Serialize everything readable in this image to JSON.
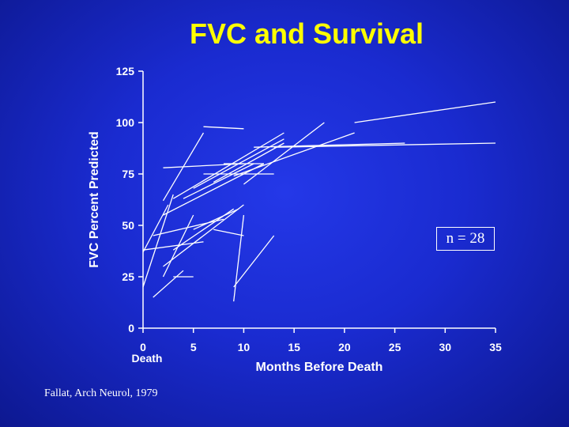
{
  "slide": {
    "title": "FVC and Survival",
    "citation": "Fallat, Arch Neurol, 1979",
    "annotation": "n = 28",
    "title_color": "#ffff00",
    "text_color": "#ffffff",
    "background_color": "#1a2bd0"
  },
  "chart_data": {
    "type": "line",
    "title": "FVC and Survival",
    "xlabel": "Months Before Death",
    "ylabel": "FVC Percent Predicted",
    "x_zero_label": "Death",
    "xlim": [
      0,
      35
    ],
    "ylim": [
      0,
      125
    ],
    "x_ticks": [
      0,
      5,
      10,
      15,
      20,
      25,
      30,
      35
    ],
    "y_ticks": [
      0,
      25,
      50,
      75,
      100,
      125
    ],
    "grid": false,
    "line_color": "#ffffff",
    "series": [
      {
        "x": [
          0,
          3
        ],
        "y": [
          20,
          65
        ]
      },
      {
        "x": [
          0,
          2.5
        ],
        "y": [
          37,
          60
        ]
      },
      {
        "x": [
          1,
          4
        ],
        "y": [
          15,
          28
        ]
      },
      {
        "x": [
          2,
          6
        ],
        "y": [
          62,
          95
        ]
      },
      {
        "x": [
          2,
          10
        ],
        "y": [
          78,
          80
        ]
      },
      {
        "x": [
          2,
          5
        ],
        "y": [
          25,
          55
        ]
      },
      {
        "x": [
          2,
          10
        ],
        "y": [
          30,
          60
        ]
      },
      {
        "x": [
          3,
          5
        ],
        "y": [
          25,
          25
        ]
      },
      {
        "x": [
          3,
          9
        ],
        "y": [
          38,
          58
        ]
      },
      {
        "x": [
          3,
          14
        ],
        "y": [
          63,
          95
        ]
      },
      {
        "x": [
          4,
          11
        ],
        "y": [
          63,
          80
        ]
      },
      {
        "x": [
          5,
          9.5
        ],
        "y": [
          48,
          58
        ]
      },
      {
        "x": [
          6,
          13
        ],
        "y": [
          75,
          75
        ]
      },
      {
        "x": [
          6,
          10
        ],
        "y": [
          98,
          97
        ]
      },
      {
        "x": [
          7,
          10
        ],
        "y": [
          48,
          45
        ]
      },
      {
        "x": [
          7,
          14
        ],
        "y": [
          71,
          90
        ]
      },
      {
        "x": [
          8,
          12
        ],
        "y": [
          80,
          80
        ]
      },
      {
        "x": [
          9,
          21
        ],
        "y": [
          74,
          95
        ]
      },
      {
        "x": [
          9,
          13
        ],
        "y": [
          20,
          45
        ]
      },
      {
        "x": [
          9,
          10
        ],
        "y": [
          13,
          55
        ]
      },
      {
        "x": [
          10,
          18
        ],
        "y": [
          70,
          100
        ]
      },
      {
        "x": [
          11,
          26
        ],
        "y": [
          88,
          90
        ]
      },
      {
        "x": [
          13,
          35
        ],
        "y": [
          88,
          90
        ]
      },
      {
        "x": [
          21,
          35
        ],
        "y": [
          100,
          110
        ]
      },
      {
        "x": [
          0,
          6
        ],
        "y": [
          38,
          42
        ]
      },
      {
        "x": [
          1,
          8
        ],
        "y": [
          45,
          53
        ]
      },
      {
        "x": [
          2,
          12
        ],
        "y": [
          55,
          80
        ]
      },
      {
        "x": [
          5,
          14
        ],
        "y": [
          68,
          92
        ]
      }
    ]
  }
}
